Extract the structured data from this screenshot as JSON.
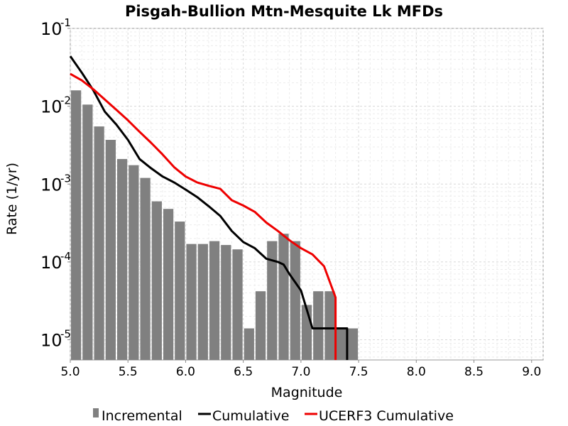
{
  "chart_data": {
    "type": "bar",
    "title": "Pisgah-Bullion Mtn-Mesquite Lk MFDs",
    "xlabel": "Magnitude",
    "ylabel": "Rate (1/yr)",
    "xlim": [
      5.0,
      9.1
    ],
    "ylim": [
      5.5e-06,
      0.1
    ],
    "yscale": "log",
    "grid": true,
    "legend_position": "bottom",
    "x_ticks": [
      "5.0",
      "5.5",
      "6.0",
      "6.5",
      "7.0",
      "7.5",
      "8.0",
      "8.5",
      "9.0"
    ],
    "y_ticks": [
      {
        "base": "10",
        "exp": "-1",
        "value": 0.1
      },
      {
        "base": "10",
        "exp": "-2",
        "value": 0.01
      },
      {
        "base": "10",
        "exp": "-3",
        "value": 0.001
      },
      {
        "base": "10",
        "exp": "-4",
        "value": 0.0001
      },
      {
        "base": "10",
        "exp": "-5",
        "value": 1e-05
      }
    ],
    "series": [
      {
        "name": "Incremental",
        "kind": "bar",
        "color": "#808080",
        "x": [
          5.05,
          5.15,
          5.25,
          5.35,
          5.45,
          5.55,
          5.65,
          5.75,
          5.85,
          5.95,
          6.05,
          6.15,
          6.25,
          6.35,
          6.45,
          6.55,
          6.65,
          6.75,
          6.85,
          6.95,
          7.05,
          7.15,
          7.25,
          7.35,
          7.45
        ],
        "values": [
          0.016,
          0.0105,
          0.0055,
          0.0037,
          0.0021,
          0.00175,
          0.0012,
          0.0006,
          0.00048,
          0.00033,
          0.00017,
          0.00017,
          0.000185,
          0.000165,
          0.000145,
          1.4e-05,
          4.2e-05,
          0.000185,
          0.00023,
          0.000185,
          2.8e-05,
          4.2e-05,
          4.2e-05,
          1.4e-05,
          1.4e-05
        ]
      },
      {
        "name": "Cumulative",
        "kind": "line",
        "color": "#000000",
        "x": [
          5.0,
          5.1,
          5.2,
          5.3,
          5.4,
          5.5,
          5.6,
          5.7,
          5.8,
          5.9,
          6.0,
          6.1,
          6.2,
          6.3,
          6.4,
          6.5,
          6.6,
          6.7,
          6.8,
          6.85,
          6.9,
          7.0,
          7.1,
          7.2,
          7.3,
          7.35,
          7.4,
          7.4
        ],
        "values": [
          0.044,
          0.027,
          0.016,
          0.0085,
          0.0058,
          0.0037,
          0.0021,
          0.0016,
          0.00125,
          0.00105,
          0.00085,
          0.00068,
          0.00052,
          0.00039,
          0.00025,
          0.00018,
          0.00015,
          0.00011,
          0.0001,
          9.25e-05,
          7e-05,
          4.3e-05,
          1.4e-05,
          1.4e-05,
          1.4e-05,
          1.4e-05,
          1.4e-05,
          5.5e-06
        ]
      },
      {
        "name": "UCERF3 Cumulative",
        "kind": "line",
        "color": "#ee0000",
        "x": [
          5.0,
          5.1,
          5.2,
          5.3,
          5.4,
          5.5,
          5.6,
          5.7,
          5.8,
          5.9,
          6.0,
          6.1,
          6.2,
          6.3,
          6.4,
          6.5,
          6.6,
          6.7,
          6.8,
          6.9,
          7.0,
          7.1,
          7.2,
          7.3,
          7.3
        ],
        "values": [
          0.026,
          0.0215,
          0.0165,
          0.0122,
          0.009,
          0.0066,
          0.0047,
          0.0034,
          0.0024,
          0.00165,
          0.00125,
          0.00105,
          0.00095,
          0.00087,
          0.00062,
          0.00053,
          0.00044,
          0.00032,
          0.00025,
          0.00019,
          0.00015,
          0.000125,
          8.8e-05,
          3.5e-05,
          5.5e-06
        ]
      }
    ]
  }
}
